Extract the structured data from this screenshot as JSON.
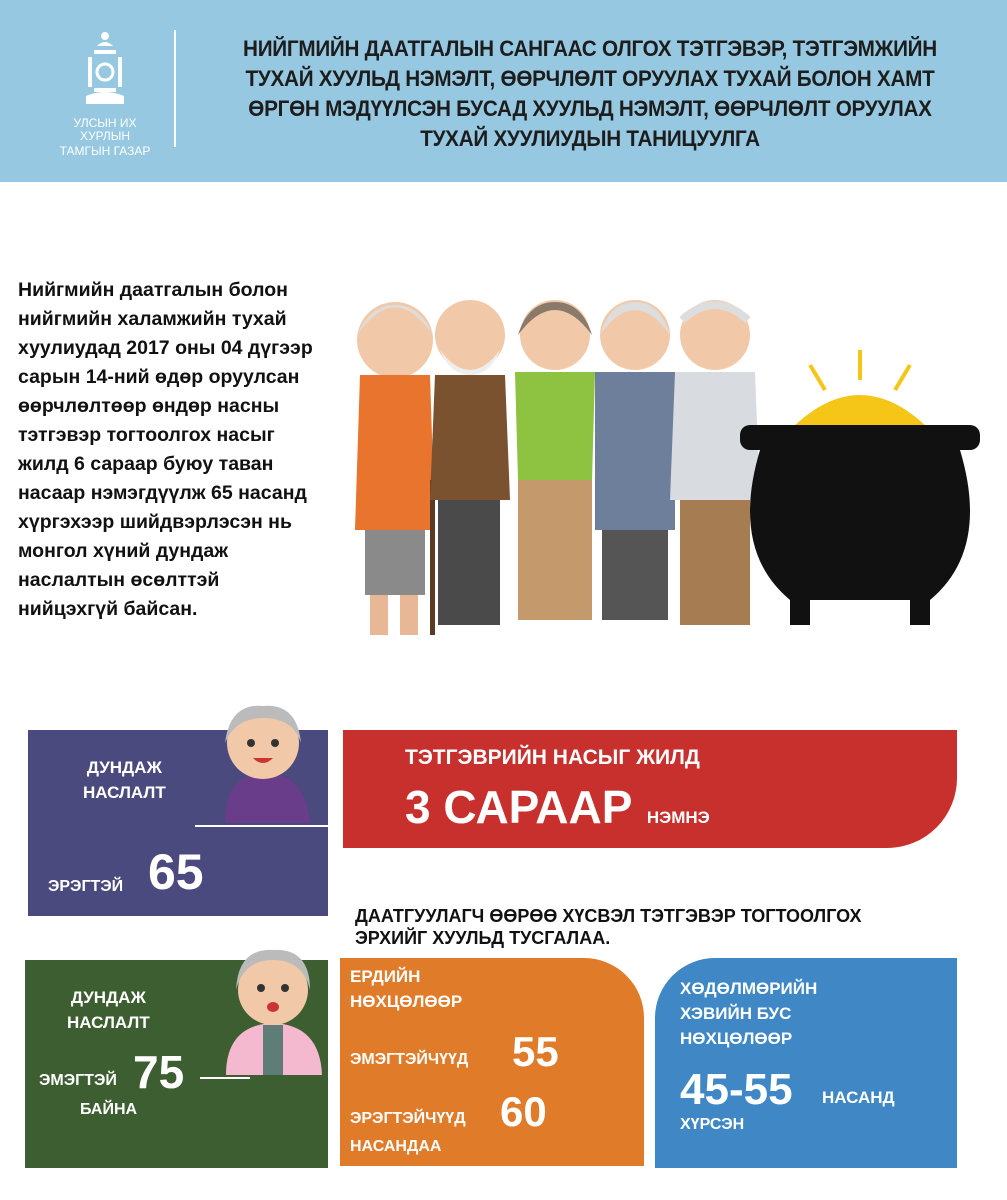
{
  "header": {
    "logo_caption": [
      "УЛСЫН ИХ ХУРЛЫН",
      "ТАМГЫН ГАЗАР"
    ],
    "title_lines": [
      "НИЙГМИЙН ДААТГАЛЫН САНГААС ОЛГОХ ТЭТГЭВЭР, ТЭТГЭМЖИЙН",
      "ТУХАЙ ХУУЛЬД НЭМЭЛТ, ӨӨРЧЛӨЛТ ОРУУЛАХ ТУХАЙ БОЛОН ХАМТ",
      "ӨРГӨН МЭДҮҮЛСЭН БУСАД ХУУЛЬД НЭМЭЛТ, ӨӨРЧЛӨЛТ ОРУУЛАХ",
      "ТУХАЙ ХУУЛИУДЫН ТАНИЦУУЛГА"
    ],
    "background": "#96c9e1"
  },
  "intro_text": "Нийгмийн даатгалын болон нийгмийн халамжийн тухай хуулиудад 2017  оны 04 дүгээр сарын 14-ний өдөр оруулсан өөрчлөлтөөр өндөр насны тэтгэвэр тогтоолгох насыг жилд 6 сараар буюу таван насаар нэмэгдүүлж 65 насанд хүргэхээр шийдвэрлэсэн нь монгол  хүний дундаж наслалтын өсөлттэй нийцэхгүй байсан.",
  "male_box": {
    "label1": "ДУНДАЖ",
    "label2": "НАСЛАЛТ",
    "gender": "ЭРЭГТЭЙ",
    "value": "65",
    "color": "#4a4a7e"
  },
  "red_box": {
    "line1": "ТЭТГЭВРИЙН НАСЫГ ЖИЛД",
    "big": "3 САРААР",
    "suffix": "НЭМНЭ",
    "color": "#c8302d"
  },
  "note": [
    "ДААТГУУЛАГЧ ӨӨРӨӨ ХҮСВЭЛ ТЭТГЭВЭР ТОГТООЛГОХ",
    "ЭРХИЙГ ХУУЛЬД ТУСГАЛАА."
  ],
  "female_box": {
    "label1": "ДУНДАЖ",
    "label2": "НАСЛАЛТ",
    "gender": "ЭМЭГТЭЙ",
    "value": "75",
    "suffix": "БАЙНА",
    "color": "#3d5e30"
  },
  "orange_box": {
    "title1": "ЕРДИЙН",
    "title2": "НӨХЦӨЛӨӨР",
    "women": "ЭМЭГТЭЙЧҮҮД",
    "women_age": "55",
    "men": "ЭРЭГТЭЙЧҮҮД",
    "men_age": "60",
    "suffix": "НАСАНДАА",
    "color": "#e07b2a"
  },
  "blue_box": {
    "title1": "ХӨДӨЛМӨРИЙН",
    "title2": "ХЭВИЙН БУС",
    "title3": "НӨХЦӨЛӨӨР",
    "range": "45-55",
    "unit": "НАСАНД",
    "suffix": "ХҮРСЭН",
    "color": "#3f87c5"
  }
}
